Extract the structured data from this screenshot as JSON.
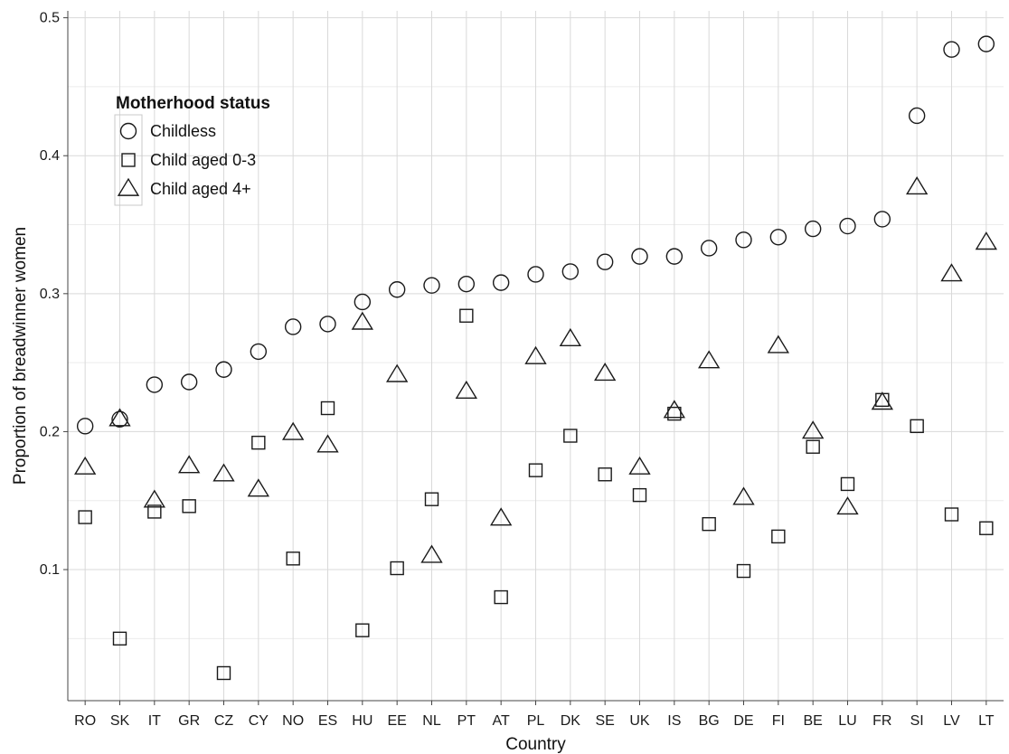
{
  "chart_data": {
    "type": "scatter",
    "xlabel": "Country",
    "ylabel": "Proportion of breadwinner women",
    "categories": [
      "RO",
      "SK",
      "IT",
      "GR",
      "CZ",
      "CY",
      "NO",
      "ES",
      "HU",
      "EE",
      "NL",
      "PT",
      "AT",
      "PL",
      "DK",
      "SE",
      "UK",
      "IS",
      "BG",
      "DE",
      "FI",
      "BE",
      "LU",
      "FR",
      "SI",
      "LV",
      "LT"
    ],
    "y_ticks": [
      0.1,
      0.2,
      0.3,
      0.4,
      0.5
    ],
    "y_tick_labels": [
      "0.1",
      "0.2",
      "0.3",
      "0.4",
      "0.5"
    ],
    "ylim": [
      0.005,
      0.505
    ],
    "grid": true,
    "legend": {
      "title": "Motherhood status",
      "position": "top-left"
    },
    "series": [
      {
        "name": "Childless",
        "marker": "circle",
        "values": [
          0.204,
          0.209,
          0.234,
          0.236,
          0.245,
          0.258,
          0.276,
          0.278,
          0.294,
          0.303,
          0.306,
          0.307,
          0.308,
          0.314,
          0.316,
          0.323,
          0.327,
          0.327,
          0.333,
          0.339,
          0.341,
          0.347,
          0.349,
          0.354,
          0.429,
          0.477,
          0.481
        ]
      },
      {
        "name": "Child aged 0-3",
        "marker": "square",
        "values": [
          0.138,
          0.05,
          0.142,
          0.146,
          0.025,
          0.192,
          0.108,
          0.217,
          0.056,
          0.101,
          0.151,
          0.284,
          0.08,
          0.172,
          0.197,
          0.169,
          0.154,
          0.213,
          0.133,
          0.099,
          0.124,
          0.189,
          0.162,
          0.223,
          0.204,
          0.14,
          0.13
        ]
      },
      {
        "name": "Child aged 4+",
        "marker": "triangle",
        "values": [
          0.174,
          0.209,
          0.15,
          0.175,
          0.169,
          0.158,
          0.199,
          0.19,
          0.279,
          0.241,
          0.11,
          0.229,
          0.137,
          0.254,
          0.267,
          0.242,
          0.174,
          0.215,
          0.251,
          0.152,
          0.262,
          0.2,
          0.145,
          0.221,
          0.377,
          0.314,
          0.337
        ]
      }
    ]
  }
}
